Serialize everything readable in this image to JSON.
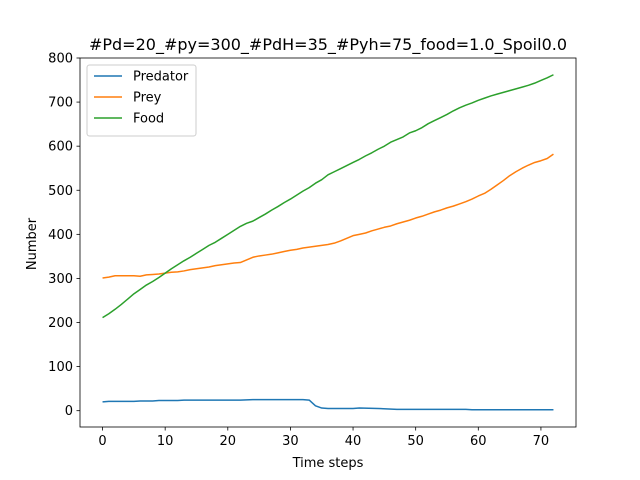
{
  "chart_data": {
    "type": "line",
    "title": "#Pd=20_#py=300_#PdH=35_#Pyh=75_food=1.0_Spoil0.0",
    "xlabel": "Time steps",
    "ylabel": "Number",
    "xlim": [
      -3.6,
      75.6
    ],
    "ylim": [
      -37,
      800
    ],
    "xticks": [
      0,
      10,
      20,
      30,
      40,
      50,
      60,
      70
    ],
    "yticks": [
      0,
      100,
      200,
      300,
      400,
      500,
      600,
      700,
      800
    ],
    "grid": false,
    "legend_position": "upper left",
    "series": [
      {
        "name": "Predator",
        "color": "#1f77b4",
        "x": [
          0,
          1,
          2,
          5,
          6,
          8,
          9,
          12,
          13,
          20,
          22,
          24,
          25,
          32,
          33,
          34,
          35,
          36,
          40,
          41,
          44,
          47,
          56,
          58,
          59,
          72
        ],
        "y": [
          20,
          21,
          21,
          21,
          22,
          22,
          23,
          23,
          24,
          24,
          24,
          25,
          25,
          25,
          24,
          11,
          6,
          5,
          5,
          6,
          5,
          3,
          3,
          3,
          2,
          2
        ]
      },
      {
        "name": "Prey",
        "color": "#ff7f0e",
        "x": [
          0,
          1,
          2,
          3,
          4,
          5,
          6,
          7,
          8,
          9,
          10,
          11,
          12,
          13,
          14,
          15,
          16,
          17,
          18,
          19,
          20,
          21,
          22,
          23,
          24,
          25,
          26,
          27,
          28,
          29,
          30,
          31,
          32,
          33,
          34,
          35,
          36,
          37,
          38,
          39,
          40,
          41,
          42,
          43,
          44,
          45,
          46,
          47,
          48,
          49,
          50,
          51,
          52,
          53,
          54,
          55,
          56,
          57,
          58,
          59,
          60,
          61,
          62,
          63,
          64,
          65,
          66,
          67,
          68,
          69,
          70,
          71,
          72
        ],
        "y": [
          301,
          303,
          306,
          306,
          306,
          306,
          305,
          308,
          309,
          310,
          312,
          314,
          315,
          317,
          320,
          322,
          324,
          326,
          329,
          331,
          333,
          335,
          336,
          342,
          348,
          351,
          353,
          355,
          358,
          361,
          364,
          366,
          369,
          371,
          373,
          375,
          377,
          380,
          385,
          391,
          397,
          400,
          403,
          408,
          412,
          416,
          419,
          424,
          428,
          432,
          437,
          441,
          446,
          451,
          455,
          460,
          464,
          469,
          474,
          480,
          487,
          493,
          502,
          512,
          522,
          533,
          542,
          550,
          557,
          563,
          567,
          572,
          582
        ]
      },
      {
        "name": "Food",
        "color": "#2ca02c",
        "x": [
          0,
          1,
          2,
          3,
          4,
          5,
          6,
          7,
          8,
          9,
          10,
          11,
          12,
          13,
          14,
          15,
          16,
          17,
          18,
          19,
          20,
          21,
          22,
          23,
          24,
          25,
          26,
          27,
          28,
          29,
          30,
          31,
          32,
          33,
          34,
          35,
          36,
          37,
          38,
          39,
          40,
          41,
          42,
          43,
          44,
          45,
          46,
          47,
          48,
          49,
          50,
          51,
          52,
          53,
          54,
          55,
          56,
          57,
          58,
          59,
          60,
          61,
          62,
          63,
          64,
          65,
          66,
          67,
          68,
          69,
          70,
          71,
          72
        ],
        "y": [
          211,
          220,
          230,
          241,
          253,
          265,
          275,
          285,
          293,
          302,
          312,
          322,
          331,
          340,
          348,
          357,
          366,
          375,
          382,
          391,
          400,
          409,
          418,
          425,
          430,
          438,
          446,
          455,
          463,
          472,
          480,
          489,
          498,
          506,
          516,
          524,
          535,
          542,
          549,
          556,
          563,
          570,
          578,
          585,
          593,
          600,
          609,
          615,
          621,
          630,
          635,
          642,
          651,
          658,
          665,
          672,
          680,
          687,
          693,
          698,
          704,
          709,
          714,
          718,
          722,
          726,
          730,
          734,
          738,
          743,
          749,
          755,
          762
        ]
      }
    ]
  }
}
